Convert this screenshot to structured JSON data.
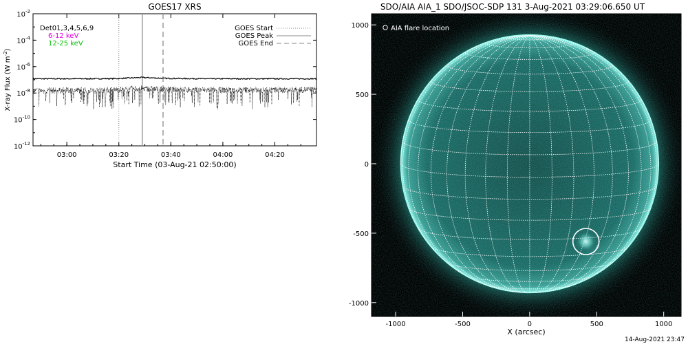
{
  "chart_data": [
    {
      "type": "line",
      "title": "GOES17 XRS",
      "xlabel": "Start Time (03-Aug-21 02:50:00)",
      "ylabel": "X-ray Flux (W m",
      "ylabel_sup": "-2",
      "ylabel_close": ")",
      "ylog": true,
      "ylim": [
        1e-12,
        0.01
      ],
      "xlim_minutes_from_start": [
        -3,
        106
      ],
      "xticks": [
        {
          "min": 10,
          "label": "03:00"
        },
        {
          "min": 30,
          "label": "03:20"
        },
        {
          "min": 50,
          "label": "03:40"
        },
        {
          "min": 70,
          "label": "04:00"
        },
        {
          "min": 90,
          "label": "04:20"
        }
      ],
      "yticks": [
        {
          "exp": -2,
          "label": "10",
          "sup": "-2"
        },
        {
          "exp": -4,
          "label": "10",
          "sup": "-4"
        },
        {
          "exp": -6,
          "label": "10",
          "sup": "-6"
        },
        {
          "exp": -8,
          "label": "10",
          "sup": "-8"
        },
        {
          "exp": -10,
          "label": "10",
          "sup": "-10"
        },
        {
          "exp": -12,
          "label": "10",
          "sup": "-12"
        }
      ],
      "channel_legend": [
        {
          "label": "Det01,3,4,5,6,9",
          "color": "#000000"
        },
        {
          "label": "6-12 keV",
          "color": "#e000e0"
        },
        {
          "label": "12-25 keV",
          "color": "#00c000"
        }
      ],
      "event_legend": [
        {
          "label": "GOES Start",
          "style": "dotted"
        },
        {
          "label": "GOES Peak",
          "style": "solid"
        },
        {
          "label": "GOES End",
          "style": "dashed"
        }
      ],
      "events_minutes_from_start": {
        "start": 30,
        "peak": 39,
        "end": 47
      },
      "series": [
        {
          "channel": "long",
          "x": [
            -3,
            0,
            10,
            20,
            30,
            35,
            39,
            43,
            47,
            55,
            65,
            75,
            85,
            95,
            106
          ],
          "y": [
            1.2e-07,
            1.2e-07,
            1.2e-07,
            1.2e-07,
            1.25e-07,
            1.4e-07,
            1.5e-07,
            1.4e-07,
            1.3e-07,
            1.25e-07,
            1.2e-07,
            1.2e-07,
            1.2e-07,
            1.2e-07,
            1.2e-07
          ]
        },
        {
          "channel": "short",
          "x": [
            -3,
            0,
            10,
            20,
            30,
            35,
            39,
            43,
            47,
            55,
            65,
            75,
            85,
            95,
            106
          ],
          "y": [
            1.5e-08,
            1.5e-08,
            1.6e-08,
            1.6e-08,
            1.8e-08,
            2e-08,
            2.2e-08,
            2e-08,
            1.9e-08,
            1.8e-08,
            1.7e-08,
            1.7e-08,
            1.7e-08,
            1.7e-08,
            1.8e-08
          ]
        }
      ]
    },
    {
      "type": "scatter",
      "title": "SDO/AIA AIA_1 SDO/JSOC-SDP 131  3-Aug-2021 03:29:06.650 UT",
      "xlabel": "X (arcsec)",
      "ylabel": "",
      "xlim": [
        -1180,
        1130
      ],
      "ylim": [
        -1100,
        1080
      ],
      "xticks": [
        -1000,
        -500,
        0,
        500,
        1000
      ],
      "yticks": [
        1000,
        500,
        0,
        -500,
        -1000
      ],
      "solar_radius_arcsec": 945,
      "grid_spacing_deg": 10,
      "disk_color": "#1d6b66",
      "limb_color": "#7ff0e4",
      "legend": "AIA flare location",
      "flare_location": {
        "x": 420,
        "y": -560
      }
    }
  ],
  "footer": {
    "timestamp": "14-Aug-2021 23:47"
  }
}
